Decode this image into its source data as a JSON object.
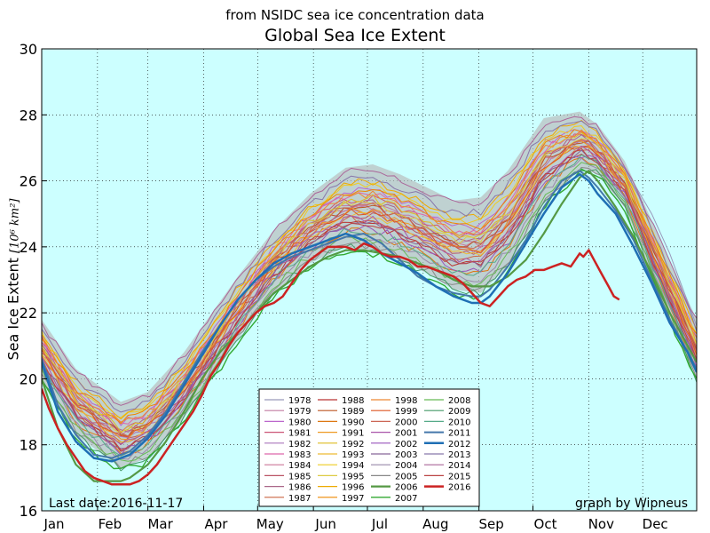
{
  "supertitle": "from NSIDC sea ice concentration data",
  "chart_data": {
    "type": "line",
    "title": "Global Sea Ice Extent",
    "ylabel": "Sea Ice Extent",
    "yunit_symbol": "[10⁶ km²]",
    "xlabel": "",
    "ylim": [
      16,
      30
    ],
    "yticks": [
      16,
      18,
      20,
      22,
      24,
      26,
      28,
      30
    ],
    "xlim": [
      1,
      365
    ],
    "month_ticks": [
      {
        "label": "Jan",
        "day": 1
      },
      {
        "label": "Feb",
        "day": 32
      },
      {
        "label": "Mar",
        "day": 60
      },
      {
        "label": "Apr",
        "day": 91
      },
      {
        "label": "May",
        "day": 121
      },
      {
        "label": "Jun",
        "day": 152
      },
      {
        "label": "Jul",
        "day": 182
      },
      {
        "label": "Aug",
        "day": 213
      },
      {
        "label": "Sep",
        "day": 244
      },
      {
        "label": "Oct",
        "day": 274
      },
      {
        "label": "Nov",
        "day": 305
      },
      {
        "label": "Dec",
        "day": 335
      }
    ],
    "grid": true,
    "plot_background": "#ccffff",
    "climatology_band": {
      "x": [
        1,
        20,
        45,
        60,
        80,
        110,
        130,
        150,
        170,
        185,
        200,
        215,
        230,
        245,
        260,
        280,
        300,
        310,
        325,
        345,
        365
      ],
      "lower": [
        20.0,
        18.3,
        17.3,
        17.6,
        18.8,
        21.2,
        22.6,
        23.5,
        24.0,
        23.9,
        23.6,
        23.2,
        22.7,
        22.6,
        23.4,
        25.3,
        26.4,
        26.2,
        25.2,
        22.5,
        20.0
      ],
      "upper": [
        21.8,
        20.3,
        19.3,
        19.6,
        20.8,
        23.1,
        24.5,
        25.6,
        26.4,
        26.5,
        26.2,
        25.8,
        25.4,
        25.5,
        26.3,
        27.9,
        28.1,
        27.7,
        26.6,
        24.2,
        21.8
      ]
    },
    "series": [
      {
        "name": "1978",
        "color": "#9999bb",
        "width": 1,
        "x": [
          305,
          315,
          325,
          340,
          350,
          365
        ],
        "y": [
          27.2,
          27.0,
          26.4,
          25.0,
          23.8,
          21.6
        ]
      },
      {
        "name": "1979",
        "color": "#c27ba0",
        "width": 1,
        "base": 0.55
      },
      {
        "name": "1980",
        "color": "#bb66cc",
        "width": 1,
        "base": 0.7
      },
      {
        "name": "1981",
        "color": "#cc5577",
        "width": 1,
        "base": 0.6
      },
      {
        "name": "1982",
        "color": "#aa77bb",
        "width": 1,
        "base": 0.45
      },
      {
        "name": "1983",
        "color": "#dd66aa",
        "width": 1,
        "base": 0.65
      },
      {
        "name": "1984",
        "color": "#cc7799",
        "width": 1,
        "base": 0.5
      },
      {
        "name": "1985",
        "color": "#bb5566",
        "width": 1,
        "base": 0.4
      },
      {
        "name": "1986",
        "color": "#aa6688",
        "width": 1,
        "base": 0.55
      },
      {
        "name": "1987",
        "color": "#cc6644",
        "width": 1,
        "base": 0.35
      },
      {
        "name": "1988",
        "color": "#bb3333",
        "width": 1,
        "base": 0.3
      },
      {
        "name": "1989",
        "color": "#bb5522",
        "width": 1,
        "base": 0.5
      },
      {
        "name": "1990",
        "color": "#dd7711",
        "width": 1,
        "base": 0.2
      },
      {
        "name": "1991",
        "color": "#ee9922",
        "width": 1,
        "base": 0.45
      },
      {
        "name": "1992",
        "color": "#ddbb22",
        "width": 1,
        "base": 0.6
      },
      {
        "name": "1993",
        "color": "#eebb33",
        "width": 1,
        "base": 0.4
      },
      {
        "name": "1994",
        "color": "#eecc22",
        "width": 1,
        "base": 0.75
      },
      {
        "name": "1995",
        "color": "#ddcc44",
        "width": 1,
        "base": 0.55
      },
      {
        "name": "1996",
        "color": "#eeaa00",
        "width": 1,
        "base": 0.8
      },
      {
        "name": "1997",
        "color": "#ee8800",
        "width": 1,
        "base": 0.7
      },
      {
        "name": "1998",
        "color": "#ee8833",
        "width": 1,
        "base": 0.65
      },
      {
        "name": "1999",
        "color": "#dd5522",
        "width": 1,
        "base": 0.45
      },
      {
        "name": "2000",
        "color": "#cc6655",
        "width": 1,
        "base": 0.5
      },
      {
        "name": "2001",
        "color": "#aa55aa",
        "width": 1,
        "base": 0.35
      },
      {
        "name": "2002",
        "color": "#9955bb",
        "width": 1,
        "base": 0.25
      },
      {
        "name": "2003",
        "color": "#886699",
        "width": 1,
        "base": 0.3
      },
      {
        "name": "2004",
        "color": "#9988aa",
        "width": 1,
        "base": 0.15
      },
      {
        "name": "2005",
        "color": "#888888",
        "width": 1,
        "base": 0.05
      },
      {
        "name": "2006",
        "color": "#559944",
        "width": 2.2,
        "x": [
          1,
          10,
          20,
          30,
          40,
          45,
          50,
          60,
          70,
          80,
          90,
          100,
          110,
          120,
          130,
          140,
          150,
          160,
          170,
          180,
          190,
          200,
          210,
          220,
          230,
          240,
          250,
          260,
          270,
          280,
          290,
          300,
          305,
          310,
          320,
          330,
          340,
          350,
          360,
          365
        ],
        "y": [
          20.0,
          18.5,
          17.4,
          16.9,
          16.9,
          16.9,
          17.0,
          17.4,
          18.1,
          19.0,
          20.0,
          20.8,
          21.4,
          22.0,
          22.6,
          23.0,
          23.4,
          23.7,
          23.9,
          23.9,
          23.8,
          23.7,
          23.5,
          23.3,
          23.0,
          22.8,
          22.8,
          23.1,
          23.6,
          24.4,
          25.3,
          26.1,
          26.3,
          26.0,
          25.2,
          24.3,
          23.2,
          22.0,
          21.0,
          20.5
        ]
      },
      {
        "name": "2007",
        "color": "#33aa33",
        "width": 1.4,
        "base": -0.05
      },
      {
        "name": "2008",
        "color": "#66bb55",
        "width": 1,
        "base": 0.1
      },
      {
        "name": "2009",
        "color": "#449966",
        "width": 1,
        "base": 0.0
      },
      {
        "name": "2010",
        "color": "#55aa88",
        "width": 1,
        "base": 0.2
      },
      {
        "name": "2011",
        "color": "#4477aa",
        "width": 2,
        "x": [
          1,
          10,
          20,
          30,
          40,
          50,
          60,
          70,
          80,
          90,
          100,
          110,
          120,
          130,
          140,
          150,
          160,
          170,
          180,
          190,
          200,
          210,
          220,
          230,
          240,
          245,
          250,
          260,
          270,
          280,
          290,
          300,
          305,
          310,
          320,
          330,
          340,
          350,
          360,
          365
        ],
        "y": [
          20.6,
          19.2,
          18.3,
          17.7,
          17.6,
          17.8,
          18.3,
          19.0,
          19.9,
          20.8,
          21.6,
          22.4,
          23.0,
          23.4,
          23.7,
          23.9,
          24.1,
          24.3,
          24.4,
          24.1,
          23.6,
          23.1,
          22.8,
          22.6,
          22.5,
          22.5,
          22.7,
          23.4,
          24.2,
          25.2,
          26.0,
          26.3,
          26.1,
          25.8,
          25.1,
          24.2,
          23.0,
          21.8,
          20.8,
          20.3
        ]
      },
      {
        "name": "2012",
        "color": "#1f6fb4",
        "width": 2.5,
        "x": [
          1,
          10,
          20,
          30,
          40,
          50,
          60,
          70,
          80,
          90,
          100,
          110,
          120,
          130,
          140,
          150,
          160,
          170,
          180,
          190,
          200,
          210,
          220,
          230,
          240,
          245,
          250,
          260,
          270,
          280,
          290,
          300,
          305,
          310,
          320,
          330,
          340,
          350,
          360,
          365
        ],
        "y": [
          20.5,
          19.0,
          18.1,
          17.6,
          17.5,
          17.7,
          18.2,
          18.9,
          19.8,
          20.7,
          21.6,
          22.4,
          23.0,
          23.5,
          23.8,
          24.0,
          24.2,
          24.4,
          24.2,
          23.8,
          23.5,
          23.2,
          22.8,
          22.5,
          22.3,
          22.3,
          22.5,
          23.2,
          24.1,
          25.0,
          25.8,
          26.2,
          26.0,
          25.6,
          25.0,
          24.0,
          22.9,
          21.7,
          20.8,
          20.2
        ]
      },
      {
        "name": "2013",
        "color": "#8877aa",
        "width": 1,
        "base": 0.85
      },
      {
        "name": "2014",
        "color": "#aa6699",
        "width": 1,
        "base": 0.95
      },
      {
        "name": "2015",
        "color": "#bb4444",
        "width": 1,
        "base": 0.3
      },
      {
        "name": "2016",
        "color": "#cc2222",
        "width": 2.5,
        "x": [
          1,
          5,
          10,
          15,
          20,
          25,
          30,
          35,
          40,
          45,
          50,
          55,
          60,
          65,
          70,
          75,
          80,
          85,
          90,
          95,
          100,
          105,
          110,
          115,
          120,
          125,
          130,
          135,
          140,
          145,
          150,
          155,
          160,
          165,
          170,
          175,
          180,
          185,
          190,
          195,
          200,
          205,
          210,
          215,
          220,
          225,
          230,
          235,
          240,
          245,
          250,
          255,
          260,
          265,
          270,
          275,
          280,
          285,
          290,
          295,
          300,
          302,
          305,
          308,
          312,
          316,
          319,
          322
        ],
        "y": [
          19.7,
          19.1,
          18.5,
          18.0,
          17.6,
          17.2,
          17.0,
          16.9,
          16.8,
          16.8,
          16.8,
          16.9,
          17.1,
          17.4,
          17.8,
          18.2,
          18.6,
          19.0,
          19.5,
          20.1,
          20.5,
          21.0,
          21.4,
          21.7,
          22.0,
          22.2,
          22.3,
          22.5,
          22.9,
          23.3,
          23.6,
          23.8,
          24.0,
          24.0,
          24.0,
          23.9,
          24.1,
          24.0,
          23.8,
          23.7,
          23.7,
          23.6,
          23.4,
          23.4,
          23.3,
          23.2,
          23.1,
          22.9,
          22.6,
          22.3,
          22.2,
          22.5,
          22.8,
          23.0,
          23.1,
          23.3,
          23.3,
          23.4,
          23.5,
          23.4,
          23.8,
          23.7,
          23.9,
          23.6,
          23.2,
          22.8,
          22.5,
          22.4
        ]
      }
    ],
    "legend_position": "lower center",
    "annotations": [
      "Last date:2016-11-17",
      "graph by Wipneus"
    ]
  }
}
